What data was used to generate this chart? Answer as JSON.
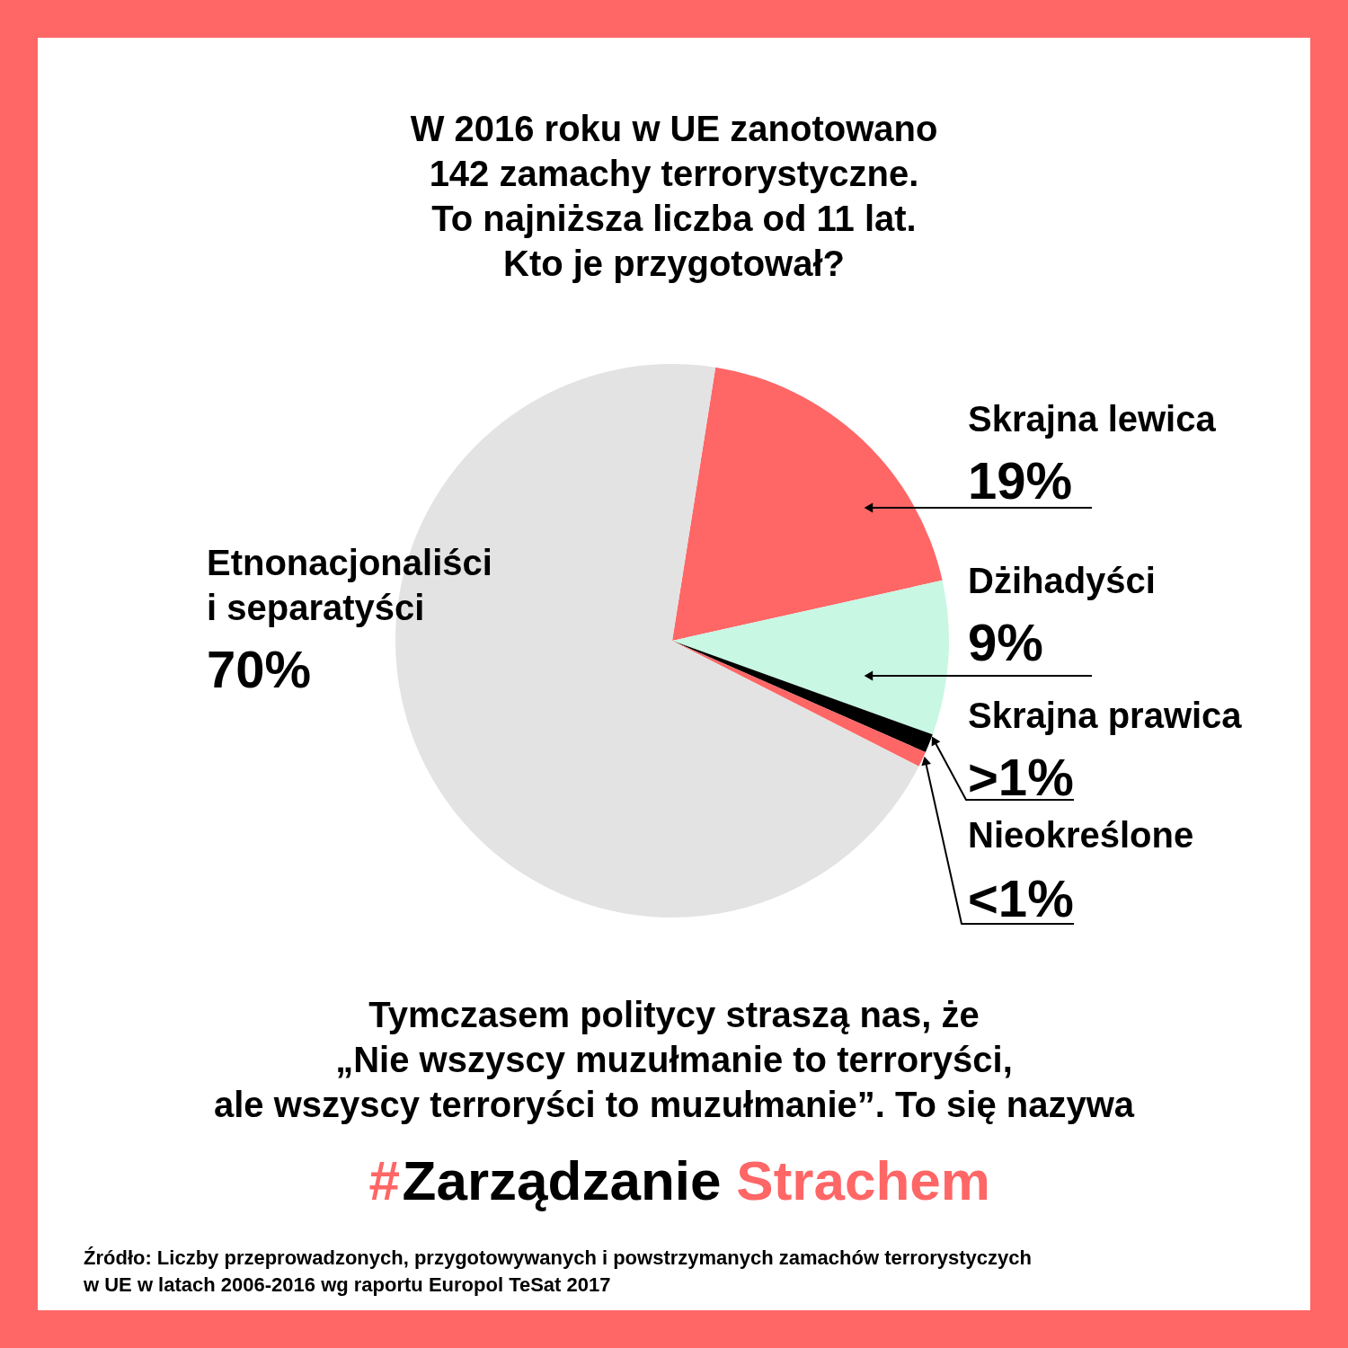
{
  "chart_data": {
    "type": "pie",
    "title": "W 2016 roku w UE zanotowano\n142 zamachy terrorystyczne.\nTo najniższa liczba od 11 lat.\nKto je przygotował?",
    "categories": [
      "Skrajna lewica",
      "Dżihadyści",
      "Skrajna prawica",
      "Nieokreślone",
      "Etnonacjonaliści\ni separatyści"
    ],
    "values": [
      19,
      9,
      1.1,
      0.9,
      70
    ],
    "value_labels": [
      "19%",
      "9%",
      ">1%",
      "<1%",
      "70%"
    ],
    "colors": [
      "#ff6666",
      "#c8f7e3",
      "#000000",
      "#ff6666",
      "#e3e3e3"
    ],
    "annotations": [
      "Tymczasem politycy straszą nas, że\n„Nie wszyscy muzułmanie to terroryści,\nale wszyscy terroryści to muzułmanie”. To się nazywa",
      "#",
      "Zarządzanie",
      "Strachem",
      "Źródło: Liczby przeprowadzonych, przygotowywanych i powstrzymanych zamachów terrorystyczych\nw UE w latach 2006-2016 wg raportu Europol TeSat 2017"
    ]
  }
}
